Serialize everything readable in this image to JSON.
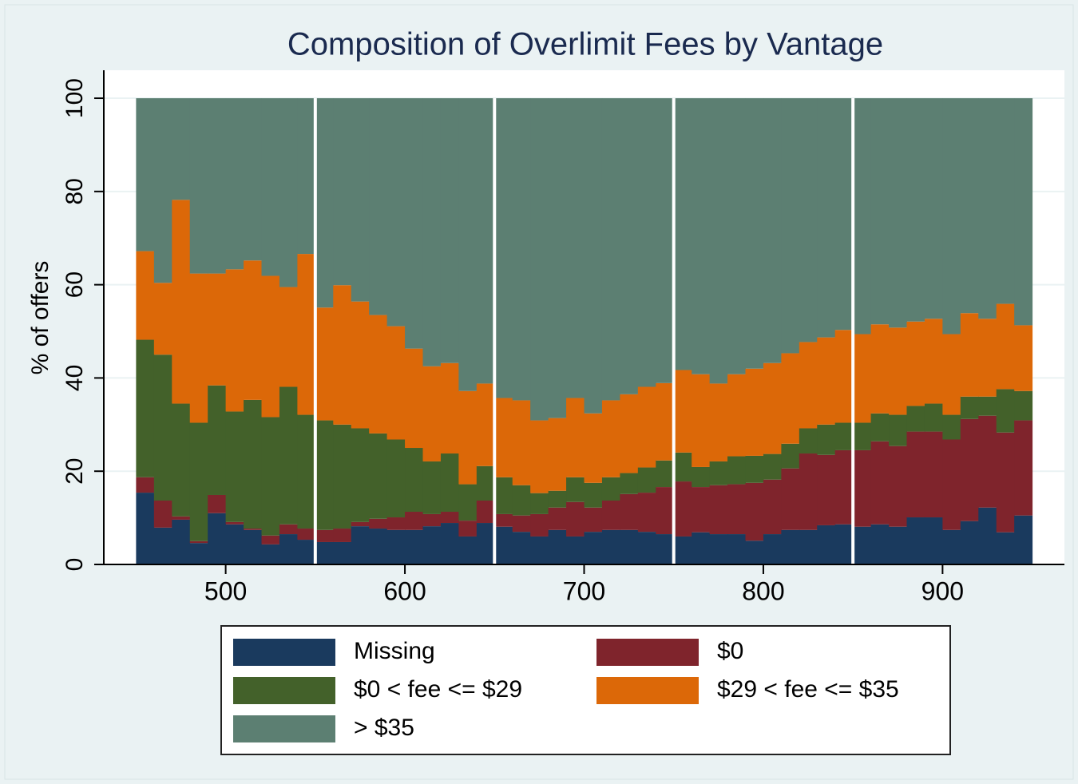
{
  "chart_data": {
    "type": "histogram",
    "stacked": true,
    "title": "Composition of Overlimit Fees by Vantage",
    "y_label": "% of offers",
    "bins": [
      450,
      460,
      470,
      480,
      490,
      500,
      510,
      520,
      530,
      540,
      550,
      560,
      570,
      580,
      590,
      600,
      610,
      620,
      630,
      640,
      650,
      660,
      670,
      680,
      690,
      700,
      710,
      720,
      730,
      740,
      750,
      760,
      770,
      780,
      790,
      800,
      810,
      820,
      830,
      840,
      850,
      860,
      870,
      880,
      890,
      900,
      910,
      920,
      930,
      940,
      950
    ],
    "series": [
      {
        "name": "Missing",
        "color": "#1a3a5e",
        "values": [
          15.4,
          7.9,
          9.6,
          4.6,
          11.0,
          8.6,
          7.4,
          4.3,
          6.5,
          5.3,
          4.8,
          4.8,
          8.2,
          7.7,
          7.4,
          7.4,
          8.2,
          8.9,
          6.0,
          8.9,
          8.1,
          7.0,
          6.0,
          7.4,
          6.0,
          7.0,
          7.4,
          7.4,
          7.0,
          6.5,
          6.0,
          6.9,
          6.5,
          6.5,
          5.1,
          6.5,
          7.4,
          7.4,
          8.4,
          8.6,
          8.1,
          8.6,
          8.1,
          10.1,
          10.1,
          7.4,
          9.3,
          12.2,
          6.9,
          10.5
        ]
      },
      {
        "name": "$0",
        "color": "#7f242c",
        "values": [
          3.3,
          5.8,
          0.7,
          0.4,
          3.9,
          0.5,
          0.3,
          1.9,
          2.1,
          2.4,
          2.6,
          2.9,
          0.9,
          2.1,
          2.7,
          3.9,
          2.6,
          2.4,
          3.4,
          4.8,
          2.7,
          3.5,
          4.8,
          4.8,
          7.4,
          5.2,
          6.3,
          7.7,
          8.4,
          10.1,
          11.8,
          9.7,
          10.5,
          10.7,
          12.4,
          11.7,
          13.2,
          16.4,
          15.1,
          15.9,
          16.4,
          17.8,
          17.3,
          18.4,
          18.4,
          19.4,
          21.9,
          19.7,
          21.4,
          20.4
        ]
      },
      {
        "name": "$0 < fee <= $29",
        "color": "#43612a",
        "values": [
          29.5,
          31.3,
          24.2,
          25.4,
          23.5,
          23.7,
          27.6,
          25.4,
          29.5,
          24.4,
          23.5,
          22.3,
          20.1,
          18.3,
          16.7,
          13.7,
          11.3,
          12.5,
          7.8,
          7.4,
          7.9,
          6.5,
          4.5,
          3.6,
          5.3,
          5.3,
          5.0,
          4.5,
          5.4,
          5.7,
          6.2,
          4.3,
          5.1,
          6.0,
          5.8,
          5.5,
          5.3,
          5.4,
          6.5,
          5.9,
          5.9,
          6.0,
          6.7,
          5.5,
          6.0,
          5.3,
          4.8,
          4.1,
          9.3,
          6.3
        ]
      },
      {
        "name": "$29 < fee <= $35",
        "color": "#dc6808",
        "values": [
          19.0,
          15.4,
          43.7,
          32.0,
          24.0,
          30.5,
          29.9,
          30.3,
          21.4,
          34.5,
          24.2,
          29.9,
          27.2,
          25.4,
          24.3,
          21.3,
          20.4,
          19.4,
          20.0,
          17.7,
          17.0,
          18.2,
          15.6,
          15.6,
          17.0,
          14.9,
          16.5,
          16.9,
          17.3,
          16.6,
          17.7,
          19.9,
          16.7,
          17.6,
          18.7,
          19.5,
          19.4,
          18.5,
          18.7,
          19.9,
          19.0,
          19.1,
          18.7,
          18.1,
          18.2,
          17.3,
          17.9,
          16.7,
          18.3,
          14.1
        ]
      },
      {
        "name": "> $35",
        "color": "#5c7f72",
        "values": [
          32.8,
          39.6,
          21.8,
          37.6,
          37.6,
          36.7,
          34.8,
          38.1,
          40.5,
          33.4,
          44.9,
          40.1,
          43.6,
          46.5,
          48.9,
          53.7,
          57.5,
          56.8,
          62.8,
          61.2,
          64.3,
          64.8,
          69.1,
          68.6,
          64.3,
          67.6,
          64.8,
          63.5,
          61.9,
          61.1,
          58.3,
          59.2,
          61.2,
          59.2,
          58.0,
          56.8,
          54.7,
          52.3,
          51.3,
          49.7,
          50.6,
          48.5,
          49.2,
          47.9,
          47.3,
          50.6,
          46.1,
          47.3,
          44.1,
          48.7
        ]
      }
    ],
    "vlines": [
      550,
      650,
      750,
      850
    ],
    "xlim": [
      432,
      968
    ],
    "xticks": [
      500,
      600,
      700,
      800,
      900
    ],
    "ylim": [
      0,
      106
    ],
    "yticks": [
      0,
      20,
      40,
      60,
      80,
      100
    ],
    "grid": true,
    "legend_position": "bottom"
  }
}
